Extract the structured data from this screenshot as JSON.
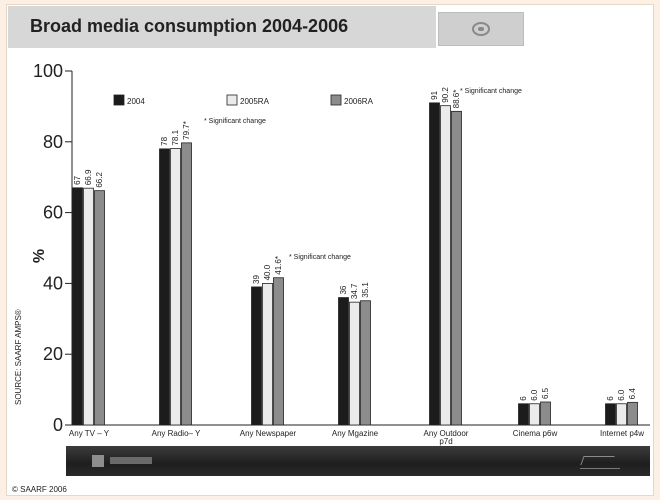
{
  "header": {
    "title": "Broad media consumption 2004-2006",
    "logo_icon": "seal-logo-icon"
  },
  "source_label": "SOURCE: SAARF AMPS®",
  "copyright": "© SAARF 2006",
  "footer": {
    "left_mark_icon": "amps-banner-logo-icon",
    "right_mark_icon": "signature-icon"
  },
  "colors": {
    "s2004": "#1c1c1c",
    "s2005": "#ebebeb",
    "s2006": "#8c8c8c",
    "title_bg": "#d7d7d7",
    "page_bg": "#fcefe3"
  },
  "chart_data": {
    "type": "bar",
    "ylabel": "%",
    "ylim": [
      0,
      100
    ],
    "yticks": [
      0,
      20,
      40,
      60,
      80,
      100
    ],
    "grid": false,
    "legend_position": "top",
    "categories": [
      "Any TV – Y",
      "Any Radio– Y",
      "Any Newspaper",
      "Any Mgazine",
      "Any Outdoor p7d",
      "Cinema p6w",
      "Internet p4w"
    ],
    "series": [
      {
        "name": "2004",
        "values": [
          67,
          78,
          39,
          36,
          91,
          6,
          6
        ],
        "labels": [
          "67",
          "78",
          "39",
          "36",
          "91",
          "6",
          "6"
        ]
      },
      {
        "name": "2005RA",
        "values": [
          66.9,
          78.1,
          40.0,
          34.7,
          90.2,
          6.0,
          6.0
        ],
        "labels": [
          "66.9",
          "78.1",
          "40.0",
          "34.7",
          "90.2",
          "6.0",
          "6.0"
        ]
      },
      {
        "name": "2006RA",
        "values": [
          66.2,
          79.7,
          41.6,
          35.1,
          88.6,
          6.5,
          6.4
        ],
        "labels": [
          "66.2",
          "79.7*",
          "41.6*",
          "35.1",
          "88.6*",
          "6.5",
          "6.4"
        ]
      }
    ],
    "annotations": [
      {
        "category_index": 1,
        "text": "* Significant change"
      },
      {
        "category_index": 2,
        "text": "* Significant change"
      },
      {
        "category_index": 4,
        "text": "* Significant change"
      }
    ]
  }
}
